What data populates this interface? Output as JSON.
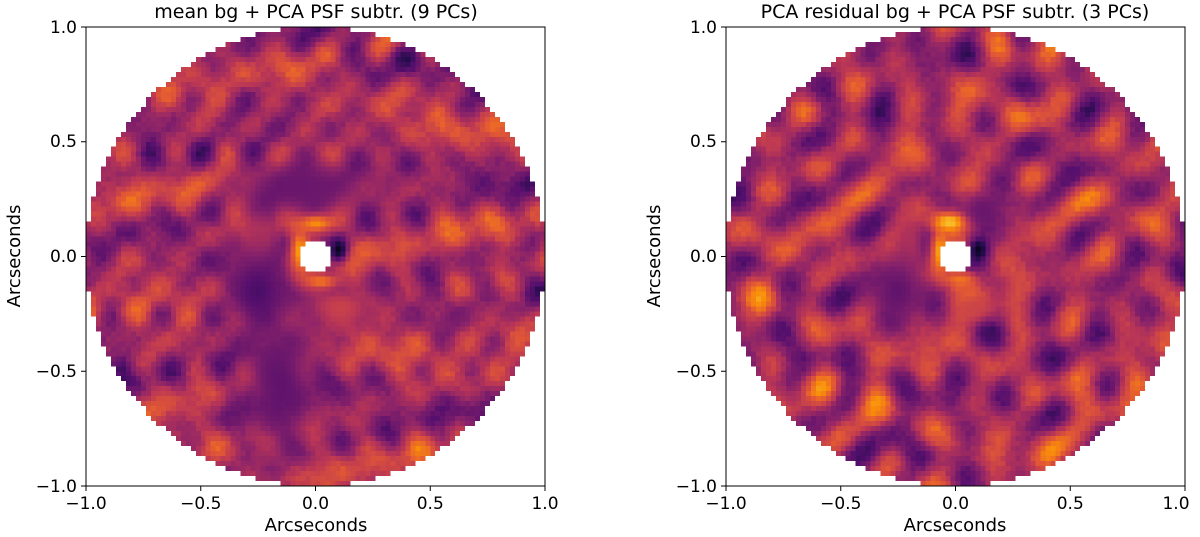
{
  "chart_data": [
    {
      "type": "heatmap",
      "title": "mean bg + PCA PSF subtr. (9 PCs)",
      "xlabel": "Arcseconds",
      "ylabel": "Arcseconds",
      "xlim": [
        -1.0,
        1.0
      ],
      "ylim": [
        -1.0,
        1.0
      ],
      "xticks": [
        -1.0,
        -0.5,
        0.0,
        0.5,
        1.0
      ],
      "yticks": [
        -1.0,
        -0.5,
        0.0,
        0.5,
        1.0
      ],
      "xtick_labels": [
        "−1.0",
        "−0.5",
        "0.0",
        "0.5",
        "1.0"
      ],
      "ytick_labels": [
        "−1.0",
        "−0.5",
        "0.0",
        "0.5",
        "1.0"
      ],
      "colormap": "inferno",
      "grid": false,
      "field_radius": 1.0,
      "mask_radius": 0.07,
      "features": [
        {
          "x": 0.0,
          "y": 0.15,
          "sx": 0.06,
          "sy": 0.03,
          "level": 0.95
        },
        {
          "x": -0.07,
          "y": 0.02,
          "sx": 0.03,
          "sy": 0.07,
          "level": 0.85
        },
        {
          "x": 0.02,
          "y": -0.11,
          "sx": 0.06,
          "sy": 0.025,
          "level": 0.75
        },
        {
          "x": 0.1,
          "y": -0.22,
          "sx": 0.1,
          "sy": 0.06,
          "level": 0.55
        },
        {
          "x": -0.25,
          "y": 0.05,
          "sx": 0.05,
          "sy": 0.12,
          "level": 0.5
        },
        {
          "x": 0.1,
          "y": 0.03,
          "sx": 0.03,
          "sy": 0.04,
          "level": 0.05
        },
        {
          "x": -0.25,
          "y": -0.15,
          "sx": 0.1,
          "sy": 0.12,
          "level": 0.22
        },
        {
          "x": -0.15,
          "y": -0.55,
          "sx": 0.12,
          "sy": 0.2,
          "level": 0.28
        },
        {
          "x": -0.05,
          "y": 0.3,
          "sx": 0.2,
          "sy": 0.1,
          "level": 0.3
        }
      ]
    },
    {
      "type": "heatmap",
      "title": "PCA residual bg + PCA PSF subtr. (3 PCs)",
      "xlabel": "Arcseconds",
      "ylabel": "Arcseconds",
      "xlim": [
        -1.0,
        1.0
      ],
      "ylim": [
        -1.0,
        1.0
      ],
      "xticks": [
        -1.0,
        -0.5,
        0.0,
        0.5,
        1.0
      ],
      "yticks": [
        -1.0,
        -0.5,
        0.0,
        0.5,
        1.0
      ],
      "xtick_labels": [
        "−1.0",
        "−0.5",
        "0.0",
        "0.5",
        "1.0"
      ],
      "ytick_labels": [
        "−1.0",
        "−0.5",
        "0.0",
        "0.5",
        "1.0"
      ],
      "colormap": "inferno",
      "grid": false,
      "field_radius": 1.0,
      "mask_radius": 0.07,
      "features": [
        {
          "x": -0.02,
          "y": 0.15,
          "sx": 0.06,
          "sy": 0.03,
          "level": 0.9
        },
        {
          "x": -0.07,
          "y": 0.02,
          "sx": 0.03,
          "sy": 0.07,
          "level": 0.82
        },
        {
          "x": 0.02,
          "y": -0.1,
          "sx": 0.05,
          "sy": 0.025,
          "level": 0.7
        },
        {
          "x": 0.08,
          "y": -0.22,
          "sx": 0.08,
          "sy": 0.05,
          "level": 0.55
        },
        {
          "x": -0.2,
          "y": 0.05,
          "sx": 0.05,
          "sy": 0.1,
          "level": 0.48
        },
        {
          "x": 0.1,
          "y": 0.03,
          "sx": 0.03,
          "sy": 0.04,
          "level": 0.05
        },
        {
          "x": -0.25,
          "y": -0.15,
          "sx": 0.08,
          "sy": 0.1,
          "level": 0.28
        },
        {
          "x": 0.12,
          "y": 0.2,
          "sx": 0.06,
          "sy": 0.06,
          "level": 0.3
        }
      ]
    }
  ]
}
